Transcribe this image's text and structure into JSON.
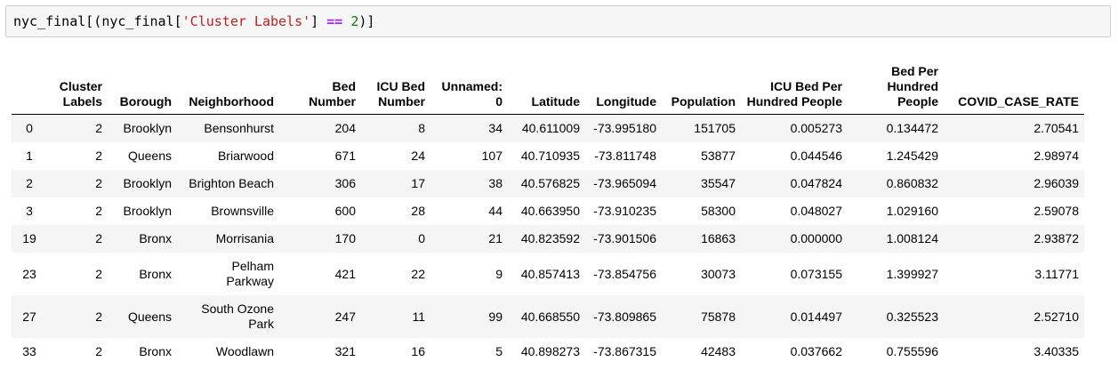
{
  "code": {
    "prefix": "nyc_final[(nyc_final[",
    "string": "'Cluster Labels'",
    "middle": "] ",
    "operator": "==",
    "space": " ",
    "number": "2",
    "suffix": ")]"
  },
  "table": {
    "headers": [
      "",
      "Cluster Labels",
      "Borough",
      "Neighborhood",
      "Bed Number",
      "ICU Bed Number",
      "Unnamed: 0",
      "Latitude",
      "Longitude",
      "Population",
      "ICU Bed Per Hundred People",
      "Bed Per Hundred People",
      "COVID_CASE_RATE"
    ],
    "rows": [
      [
        "0",
        "2",
        "Brooklyn",
        "Bensonhurst",
        "204",
        "8",
        "34",
        "40.611009",
        "-73.995180",
        "151705",
        "0.005273",
        "0.134472",
        "2.70541"
      ],
      [
        "1",
        "2",
        "Queens",
        "Briarwood",
        "671",
        "24",
        "107",
        "40.710935",
        "-73.811748",
        "53877",
        "0.044546",
        "1.245429",
        "2.98974"
      ],
      [
        "2",
        "2",
        "Brooklyn",
        "Brighton Beach",
        "306",
        "17",
        "38",
        "40.576825",
        "-73.965094",
        "35547",
        "0.047824",
        "0.860832",
        "2.96039"
      ],
      [
        "3",
        "2",
        "Brooklyn",
        "Brownsville",
        "600",
        "28",
        "44",
        "40.663950",
        "-73.910235",
        "58300",
        "0.048027",
        "1.029160",
        "2.59078"
      ],
      [
        "19",
        "2",
        "Bronx",
        "Morrisania",
        "170",
        "0",
        "21",
        "40.823592",
        "-73.901506",
        "16863",
        "0.000000",
        "1.008124",
        "2.93872"
      ],
      [
        "23",
        "2",
        "Bronx",
        "Pelham Parkway",
        "421",
        "22",
        "9",
        "40.857413",
        "-73.854756",
        "30073",
        "0.073155",
        "1.399927",
        "3.11771"
      ],
      [
        "27",
        "2",
        "Queens",
        "South Ozone Park",
        "247",
        "11",
        "99",
        "40.668550",
        "-73.809865",
        "75878",
        "0.014497",
        "0.325523",
        "2.52710"
      ],
      [
        "33",
        "2",
        "Bronx",
        "Woodlawn",
        "321",
        "16",
        "5",
        "40.898273",
        "-73.867315",
        "42483",
        "0.037662",
        "0.755596",
        "3.40335"
      ]
    ]
  }
}
